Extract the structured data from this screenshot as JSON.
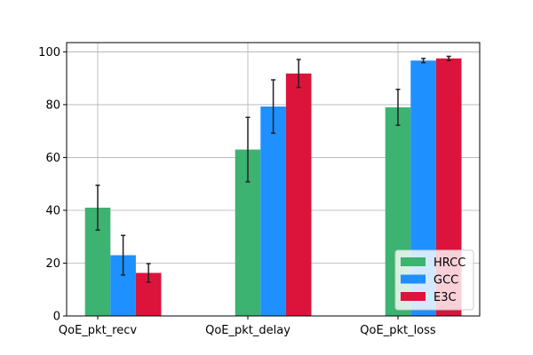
{
  "chart_data": {
    "type": "bar",
    "categories": [
      "QoE_pkt_recv",
      "QoE_pkt_delay",
      "QoE_pkt_loss"
    ],
    "series": [
      {
        "name": "HRCC",
        "color": "#3cb371",
        "values": [
          41.0,
          63.0,
          79.0
        ],
        "err": [
          8.5,
          12.2,
          6.8
        ]
      },
      {
        "name": "GCC",
        "color": "#1e90ff",
        "values": [
          23.0,
          79.3,
          96.7
        ],
        "err": [
          7.5,
          10.1,
          0.8
        ]
      },
      {
        "name": "E3C",
        "color": "#dc143c",
        "values": [
          16.3,
          91.8,
          97.5
        ],
        "err": [
          3.5,
          5.3,
          0.8
        ]
      }
    ],
    "yticks": [
      0,
      20,
      40,
      60,
      80,
      100
    ],
    "ylim": [
      0,
      103.5
    ],
    "grid": true,
    "legend_position": "lower-right",
    "title": "",
    "xlabel": "",
    "ylabel": ""
  }
}
